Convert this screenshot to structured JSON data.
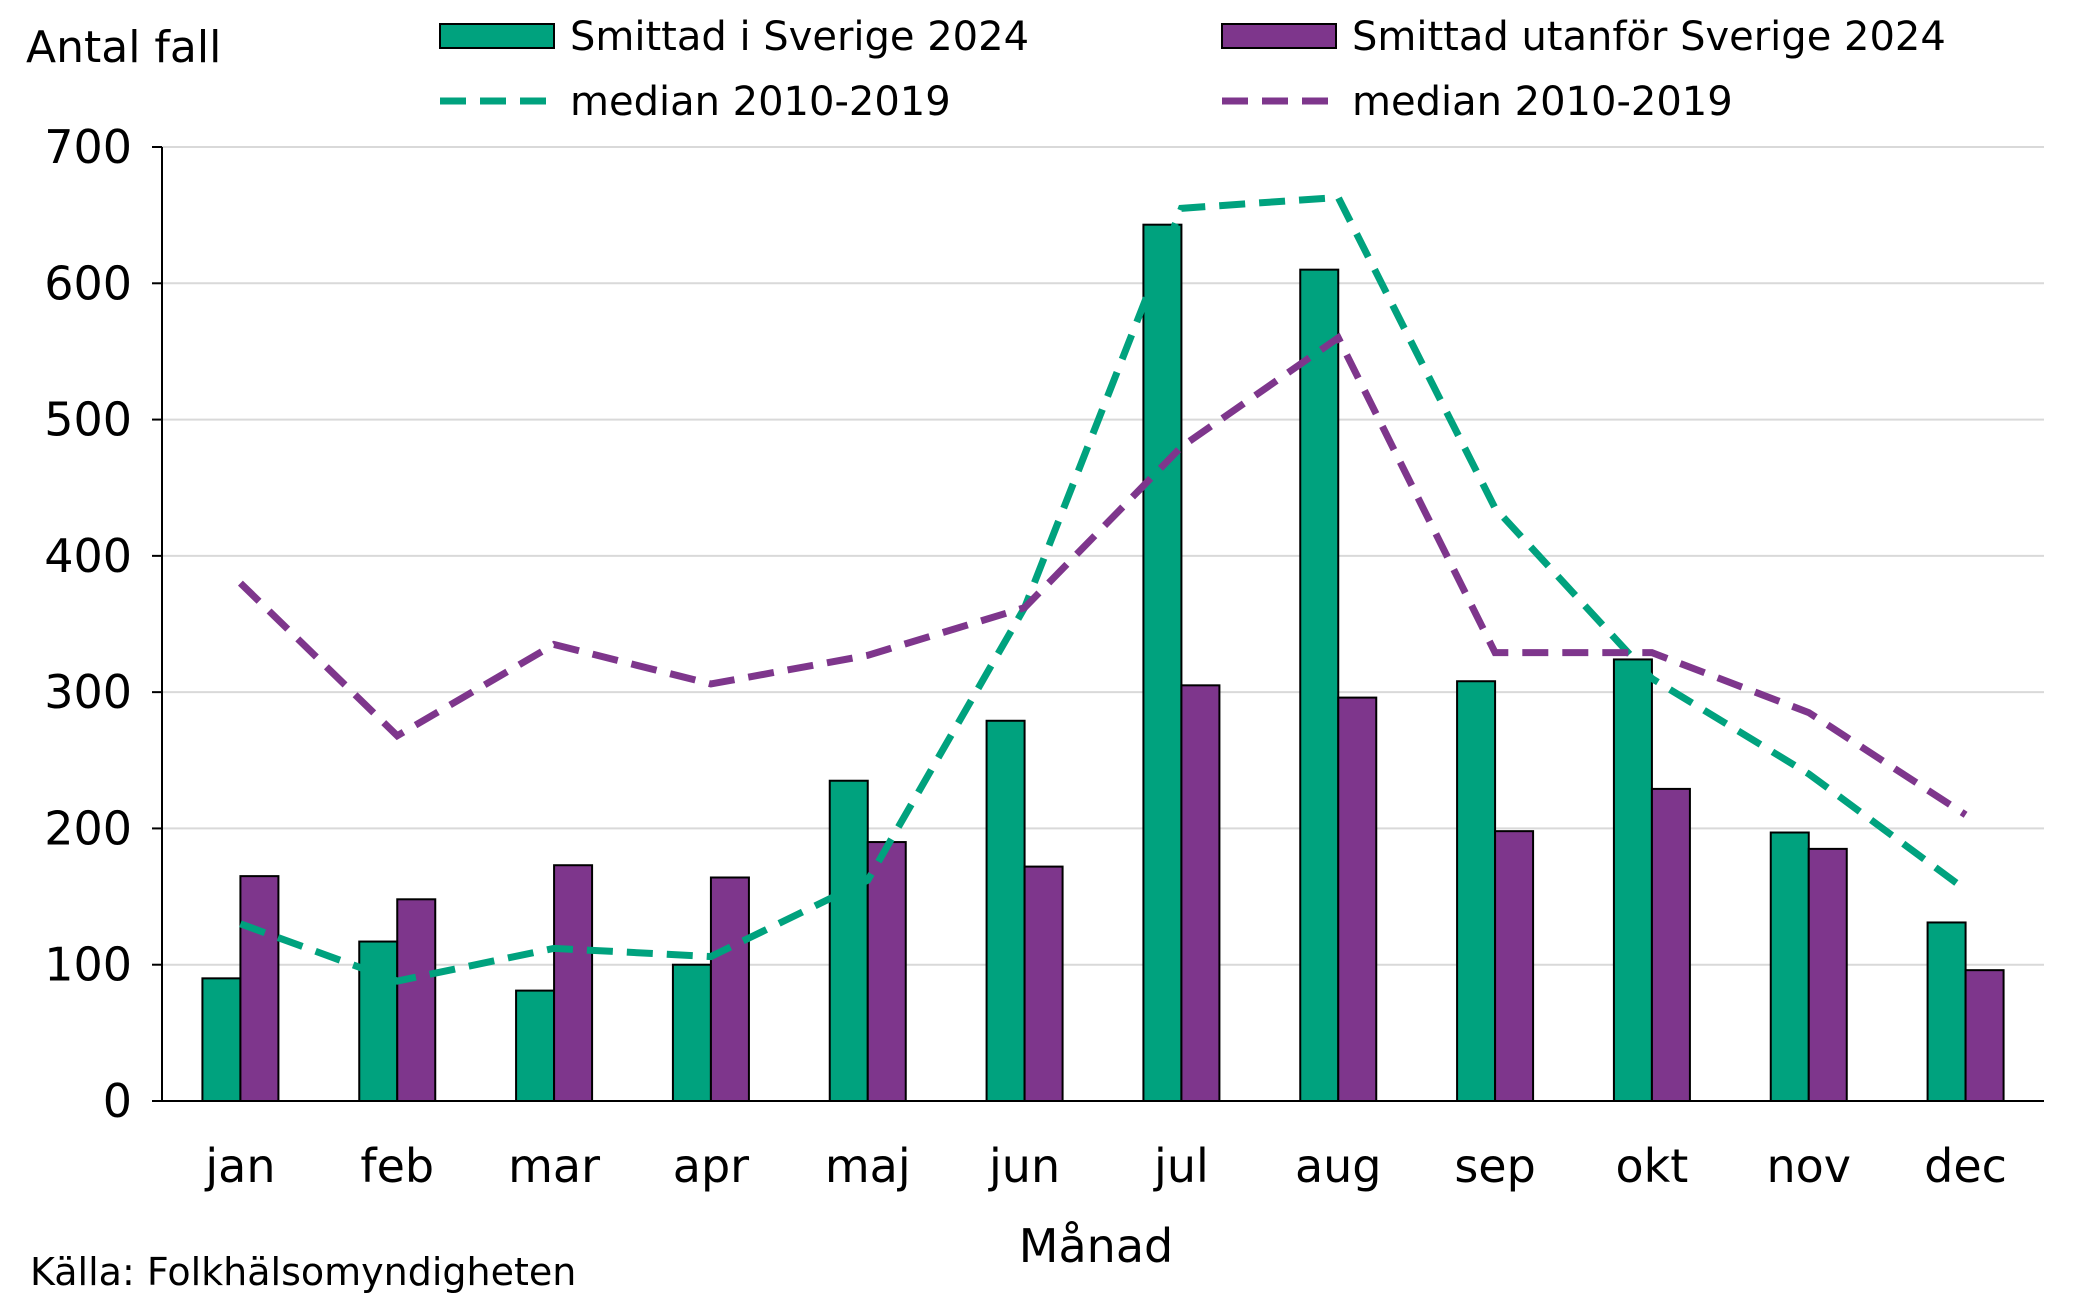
{
  "chart_data": {
    "type": "bar",
    "ylabel": "Antal fall",
    "xlabel": "Månad",
    "source": "Källa: Folkhälsomyndigheten",
    "categories": [
      "jan",
      "feb",
      "mar",
      "apr",
      "maj",
      "jun",
      "jul",
      "aug",
      "sep",
      "okt",
      "nov",
      "dec"
    ],
    "ylim": [
      0,
      700
    ],
    "yticks": [
      0,
      100,
      200,
      300,
      400,
      500,
      600,
      700
    ],
    "grid": true,
    "series": [
      {
        "name": "Smittad i Sverige 2024",
        "kind": "bar",
        "color": "#00A27E",
        "values": [
          90,
          117,
          81,
          100,
          235,
          279,
          643,
          610,
          308,
          324,
          197,
          131
        ]
      },
      {
        "name": "Smittad utanför Sverige 2024",
        "kind": "bar",
        "color": "#7E368C",
        "values": [
          165,
          148,
          173,
          164,
          190,
          172,
          305,
          296,
          198,
          229,
          185,
          96
        ]
      }
    ],
    "lines": [
      {
        "name": "median 2010-2019",
        "kind": "dashed-line",
        "color": "#00A27E",
        "values": [
          130,
          88,
          112,
          106,
          162,
          362,
          655,
          663,
          435,
          310,
          240,
          155
        ]
      },
      {
        "name": "median 2010-2019",
        "kind": "dashed-line",
        "color": "#7E368C",
        "values": [
          380,
          268,
          335,
          306,
          327,
          362,
          480,
          560,
          329,
          329,
          285,
          210
        ]
      }
    ]
  }
}
